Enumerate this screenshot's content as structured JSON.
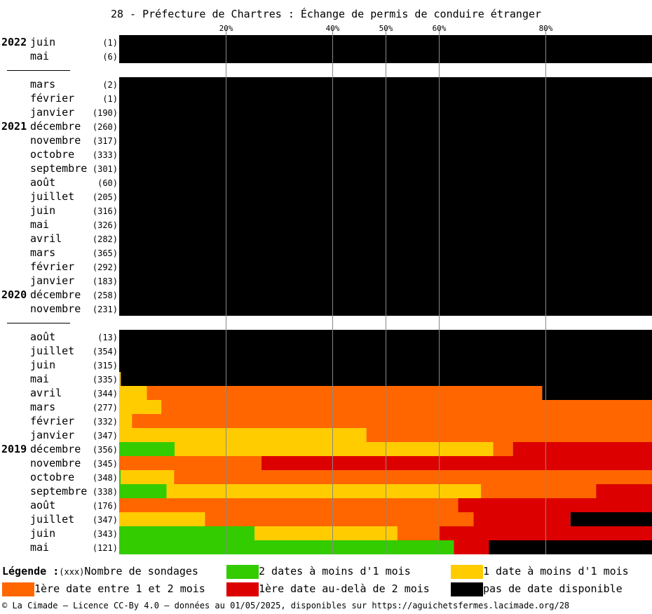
{
  "chart_data": {
    "type": "bar",
    "orientation": "horizontal",
    "stacked": true,
    "title": "28 - Préfecture de Chartres : Échange de permis de conduire étranger",
    "x_ticks": [
      "20%",
      "40%",
      "50%",
      "60%",
      "80%"
    ],
    "x_tick_values": [
      20,
      40,
      50,
      60,
      80
    ],
    "xlim": [
      0,
      100
    ],
    "series": [
      {
        "name": "2 dates à moins d'1 mois",
        "color": "#33cc00"
      },
      {
        "name": "1 date à moins d'1 mois",
        "color": "#ffcc00"
      },
      {
        "name": "1ère date entre 1 et 2 mois",
        "color": "#ff6600"
      },
      {
        "name": "1ère date au-delà de 2 mois",
        "color": "#dd0000"
      },
      {
        "name": "pas de date disponible",
        "color": "#000000"
      }
    ],
    "rows": [
      {
        "year": "2022",
        "month": "juin",
        "count": "(1)",
        "values": [
          0,
          0,
          0,
          0,
          100
        ]
      },
      {
        "year": "",
        "month": "mai",
        "count": "(6)",
        "values": [
          0,
          0,
          0,
          0,
          100
        ]
      },
      {
        "separator": true
      },
      {
        "year": "",
        "month": "mars",
        "count": "(2)",
        "values": [
          0,
          0,
          0,
          0,
          100
        ]
      },
      {
        "year": "",
        "month": "février",
        "count": "(1)",
        "values": [
          0,
          0,
          0,
          0,
          100
        ]
      },
      {
        "year": "",
        "month": "janvier",
        "count": "(190)",
        "values": [
          0,
          0,
          0,
          0,
          100
        ]
      },
      {
        "year": "2021",
        "month": "décembre",
        "count": "(260)",
        "values": [
          0,
          0,
          0,
          0,
          100
        ]
      },
      {
        "year": "",
        "month": "novembre",
        "count": "(317)",
        "values": [
          0,
          0,
          0,
          0,
          100
        ]
      },
      {
        "year": "",
        "month": "octobre",
        "count": "(333)",
        "values": [
          0,
          0,
          0,
          0,
          100
        ]
      },
      {
        "year": "",
        "month": "septembre",
        "count": "(301)",
        "values": [
          0,
          0,
          0,
          0,
          100
        ]
      },
      {
        "year": "",
        "month": "août",
        "count": "(60)",
        "values": [
          0,
          0,
          0,
          0,
          100
        ]
      },
      {
        "year": "",
        "month": "juillet",
        "count": "(205)",
        "values": [
          0,
          0,
          0,
          0,
          100
        ]
      },
      {
        "year": "",
        "month": "juin",
        "count": "(316)",
        "values": [
          0,
          0,
          0,
          0,
          100
        ]
      },
      {
        "year": "",
        "month": "mai",
        "count": "(326)",
        "values": [
          0,
          0,
          0,
          0,
          100
        ]
      },
      {
        "year": "",
        "month": "avril",
        "count": "(282)",
        "values": [
          0,
          0,
          0,
          0,
          100
        ]
      },
      {
        "year": "",
        "month": "mars",
        "count": "(365)",
        "values": [
          0,
          0,
          0,
          0,
          100
        ]
      },
      {
        "year": "",
        "month": "février",
        "count": "(292)",
        "values": [
          0,
          0,
          0,
          0,
          100
        ]
      },
      {
        "year": "",
        "month": "janvier",
        "count": "(183)",
        "values": [
          0,
          0,
          0,
          0,
          100
        ]
      },
      {
        "year": "2020",
        "month": "décembre",
        "count": "(258)",
        "values": [
          0,
          0,
          0,
          0,
          100
        ]
      },
      {
        "year": "",
        "month": "novembre",
        "count": "(231)",
        "values": [
          0,
          0,
          0,
          0,
          100
        ]
      },
      {
        "separator": true
      },
      {
        "year": "",
        "month": "août",
        "count": "(13)",
        "values": [
          0,
          0,
          0,
          0,
          100
        ]
      },
      {
        "year": "",
        "month": "juillet",
        "count": "(354)",
        "values": [
          0,
          0,
          0,
          0,
          100
        ]
      },
      {
        "year": "",
        "month": "juin",
        "count": "(315)",
        "values": [
          0,
          0,
          0,
          0,
          100
        ]
      },
      {
        "year": "",
        "month": "mai",
        "count": "(335)",
        "values": [
          0,
          0.3,
          0,
          0,
          99.7
        ]
      },
      {
        "year": "",
        "month": "avril",
        "count": "(344)",
        "values": [
          0,
          5.2,
          74.2,
          0,
          20.6
        ]
      },
      {
        "year": "",
        "month": "mars",
        "count": "(277)",
        "values": [
          0,
          7.9,
          92.1,
          0,
          0
        ]
      },
      {
        "year": "",
        "month": "février",
        "count": "(332)",
        "values": [
          0,
          2.4,
          97.6,
          0,
          0
        ]
      },
      {
        "year": "",
        "month": "janvier",
        "count": "(347)",
        "values": [
          0,
          46.4,
          53.6,
          0,
          0
        ]
      },
      {
        "year": "2019",
        "month": "décembre",
        "count": "(356)",
        "values": [
          10.4,
          59.8,
          3.7,
          26.1,
          0
        ]
      },
      {
        "year": "",
        "month": "novembre",
        "count": "(345)",
        "values": [
          0,
          0,
          26.7,
          73.3,
          0
        ]
      },
      {
        "year": "",
        "month": "octobre",
        "count": "(348)",
        "values": [
          0.3,
          10.0,
          89.7,
          0,
          0
        ]
      },
      {
        "year": "",
        "month": "septembre",
        "count": "(338)",
        "values": [
          8.9,
          59.0,
          21.6,
          10.5,
          0
        ]
      },
      {
        "year": "",
        "month": "août",
        "count": "(176)",
        "values": [
          0,
          0,
          63.6,
          36.4,
          0
        ]
      },
      {
        "year": "",
        "month": "juillet",
        "count": "(347)",
        "values": [
          0,
          16.1,
          50.4,
          18.2,
          15.3
        ]
      },
      {
        "year": "",
        "month": "juin",
        "count": "(343)",
        "values": [
          25.4,
          26.8,
          7.9,
          39.9,
          0
        ]
      },
      {
        "year": "",
        "month": "mai",
        "count": "(121)",
        "values": [
          62.8,
          0,
          0,
          6.6,
          30.6
        ]
      }
    ],
    "legend_position": "bottom",
    "grid": true
  },
  "legend": {
    "title": "Légende :",
    "count_hint": "(xxx)",
    "count_label": "Nombre de sondages",
    "items": [
      "2 dates à moins d'1 mois",
      "1 date à moins d'1 mois",
      "1ère date entre 1 et 2 mois",
      "1ère date au-delà de 2 mois",
      "pas de date disponible"
    ]
  },
  "colors": {
    "green": "#33cc00",
    "yellow": "#ffcc00",
    "orange": "#ff6600",
    "red": "#dd0000",
    "black": "#000000"
  },
  "footer": "© La Cimade – Licence CC-By 4.0 – données au 01/05/2025, disponibles sur https://aguichetsfermes.lacimade.org/28"
}
